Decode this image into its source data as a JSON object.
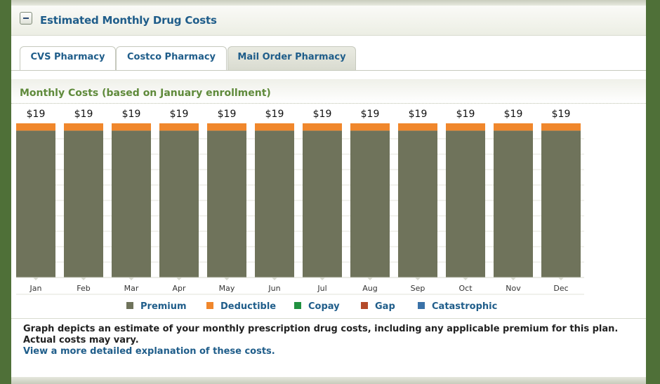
{
  "panel": {
    "title": "Estimated Monthly Drug Costs"
  },
  "tabs": [
    {
      "label": "CVS Pharmacy"
    },
    {
      "label": "Costco Pharmacy"
    },
    {
      "label": "Mail Order Pharmacy"
    }
  ],
  "subheader": {
    "title": "Monthly Costs (based on January enrollment)"
  },
  "footer": {
    "text": "Graph depicts an estimate of your monthly prescription drug costs, including any applicable premium for this plan. Actual costs may vary.",
    "link": "View a more detailed explanation of these costs."
  },
  "colors": {
    "premium": "#6f735b",
    "deductible": "#f0872c",
    "copay": "#219140",
    "gap": "#b44a2a",
    "catastrophic": "#3a72a8",
    "link": "#1f5d8a"
  },
  "chart_data": {
    "type": "bar",
    "stacked": true,
    "categories": [
      "Jan",
      "Feb",
      "Mar",
      "Apr",
      "May",
      "Jun",
      "Jul",
      "Aug",
      "Sep",
      "Oct",
      "Nov",
      "Dec"
    ],
    "series": [
      {
        "name": "Premium",
        "values": [
          18.1,
          18.1,
          18.1,
          18.1,
          18.1,
          18.1,
          18.1,
          18.1,
          18.1,
          18.1,
          18.1,
          18.1
        ]
      },
      {
        "name": "Deductible",
        "values": [
          0.9,
          0.9,
          0.9,
          0.9,
          0.9,
          0.9,
          0.9,
          0.9,
          0.9,
          0.9,
          0.9,
          0.9
        ]
      },
      {
        "name": "Copay",
        "values": [
          0,
          0,
          0,
          0,
          0,
          0,
          0,
          0,
          0,
          0,
          0,
          0
        ]
      },
      {
        "name": "Gap",
        "values": [
          0,
          0,
          0,
          0,
          0,
          0,
          0,
          0,
          0,
          0,
          0,
          0
        ]
      },
      {
        "name": "Catastrophic",
        "values": [
          0,
          0,
          0,
          0,
          0,
          0,
          0,
          0,
          0,
          0,
          0,
          0
        ]
      }
    ],
    "data_labels": [
      "$19",
      "$19",
      "$19",
      "$19",
      "$19",
      "$19",
      "$19",
      "$19",
      "$19",
      "$19",
      "$19",
      "$19"
    ],
    "ylim": [
      0,
      19
    ],
    "grid": true,
    "legend": [
      "Premium",
      "Deductible",
      "Copay",
      "Gap",
      "Catastrophic"
    ],
    "legend_position": "bottom"
  }
}
